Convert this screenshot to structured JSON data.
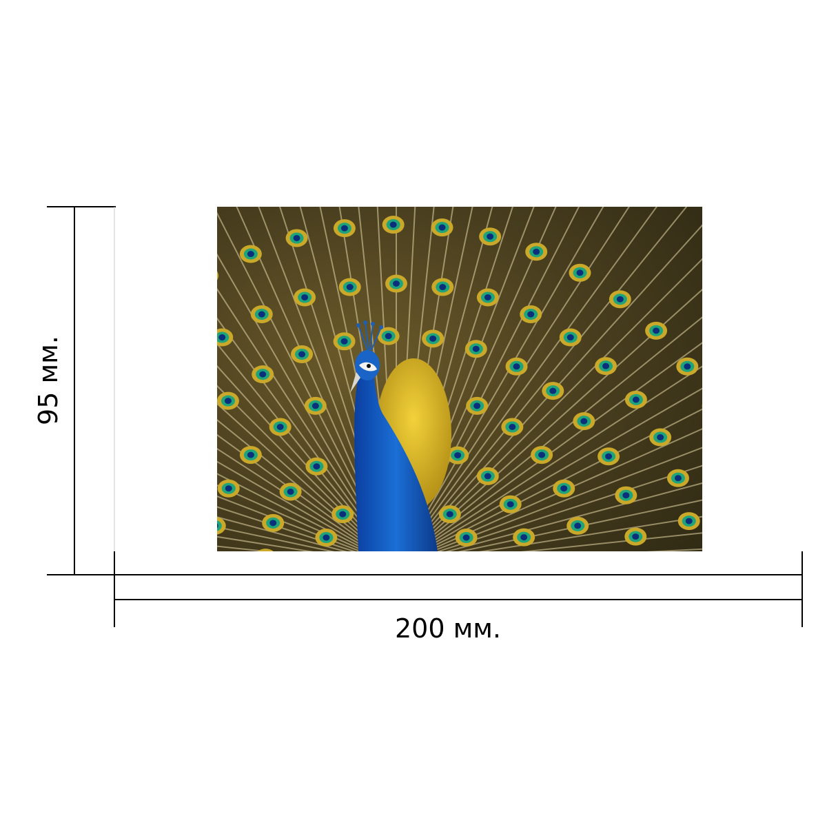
{
  "dimensions": {
    "width_label": "200 мм.",
    "height_label": "95 мм."
  },
  "colors": {
    "line": "#000000",
    "background": "#ffffff"
  },
  "image": {
    "subject_icon": "peacock-photo-icon"
  }
}
